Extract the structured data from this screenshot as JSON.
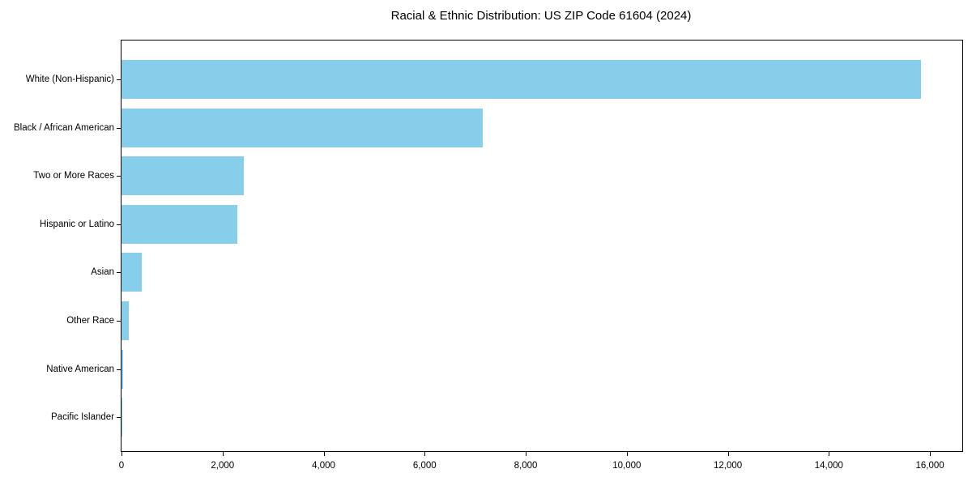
{
  "chart_data": {
    "type": "bar",
    "orientation": "horizontal",
    "title": "Racial & Ethnic Distribution: US ZIP Code 61604 (2024)",
    "categories": [
      "White (Non-Hispanic)",
      "Black / African American",
      "Two or More Races",
      "Hispanic or Latino",
      "Asian",
      "Other Race",
      "Native American",
      "Pacific Islander"
    ],
    "values": [
      15820,
      7150,
      2420,
      2290,
      400,
      150,
      25,
      5
    ],
    "xlabel": "",
    "ylabel": "",
    "xlim": [
      0,
      16640
    ],
    "xticks": [
      0,
      2000,
      4000,
      6000,
      8000,
      10000,
      12000,
      14000,
      16000
    ],
    "xtick_labels": [
      "0",
      "2,000",
      "4,000",
      "6,000",
      "8,000",
      "10,000",
      "12,000",
      "14,000",
      "16,000"
    ],
    "bar_color": "#87CEEB",
    "axis_color": "#000000",
    "background_color": "#FFFFFF",
    "grid": false,
    "legend": null,
    "value_labels_shown": false
  }
}
